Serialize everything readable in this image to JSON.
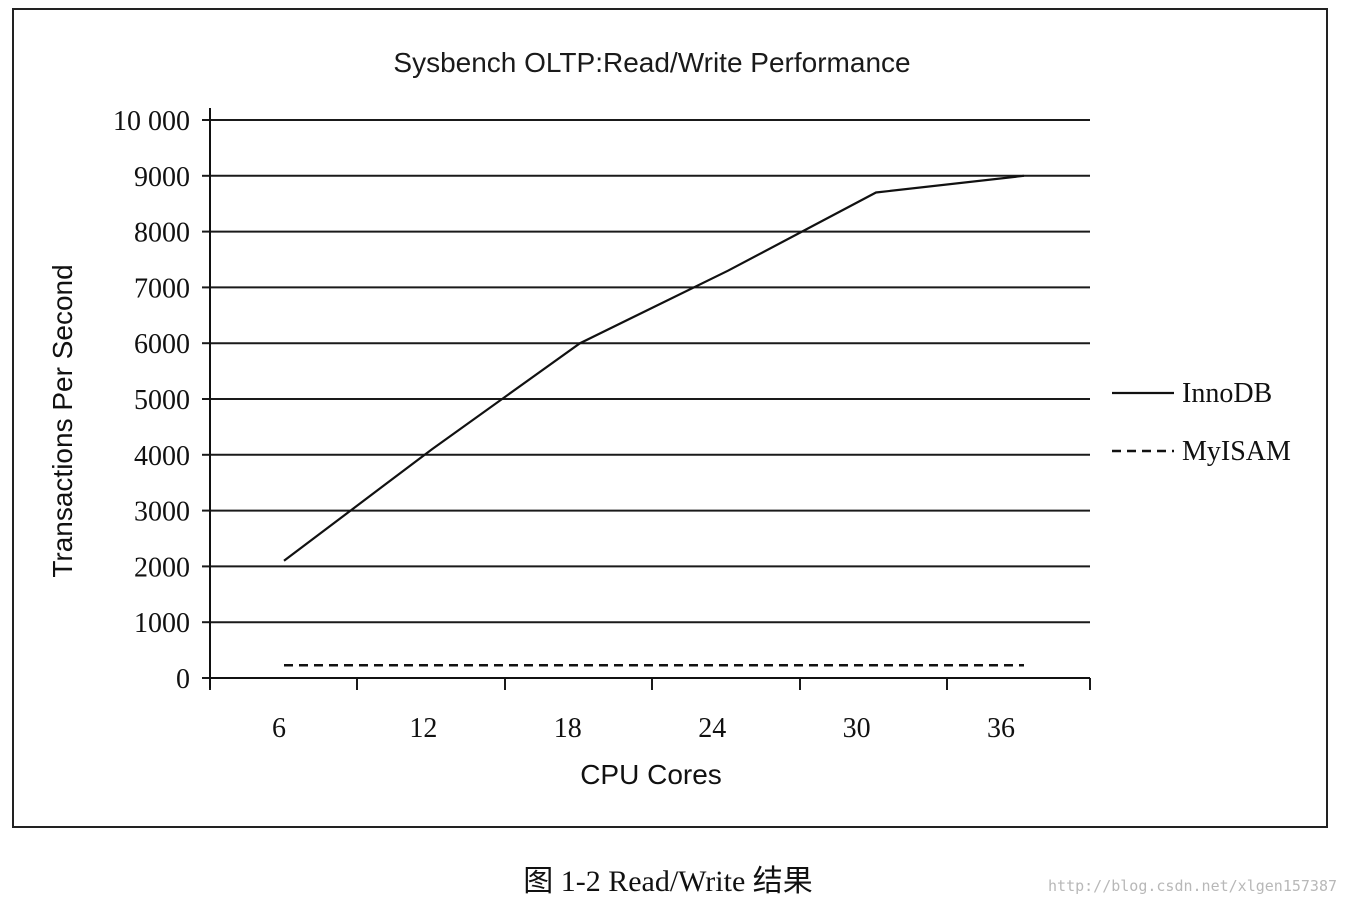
{
  "chart_data": {
    "type": "line",
    "title": "Sysbench OLTP:Read/Write Performance",
    "xlabel": "CPU Cores",
    "ylabel": "Transactions Per Second",
    "x_ticks": [
      "6",
      "12",
      "18",
      "24",
      "30",
      "36"
    ],
    "y_ticks": [
      "0",
      "1000",
      "2000",
      "3000",
      "4000",
      "5000",
      "6000",
      "7000",
      "8000",
      "9000",
      "10 000"
    ],
    "ylim": [
      0,
      10000
    ],
    "grid": "horizontal",
    "legend_position": "right",
    "series": [
      {
        "name": "InnoDB",
        "style": "solid",
        "x": [
          6,
          12,
          18,
          24,
          30,
          36
        ],
        "y": [
          2100,
          4100,
          6000,
          7300,
          8700,
          9000
        ]
      },
      {
        "name": "MyISAM",
        "style": "dashed",
        "x": [
          6,
          12,
          18,
          24,
          30,
          36
        ],
        "y": [
          230,
          230,
          230,
          230,
          230,
          230
        ]
      }
    ]
  },
  "caption": "图 1-2   Read/Write 结果",
  "watermark": "http://blog.csdn.net/xlgen157387",
  "colors": {
    "line": "#111111",
    "grid": "#1a1a1a",
    "frame": "#222222"
  }
}
